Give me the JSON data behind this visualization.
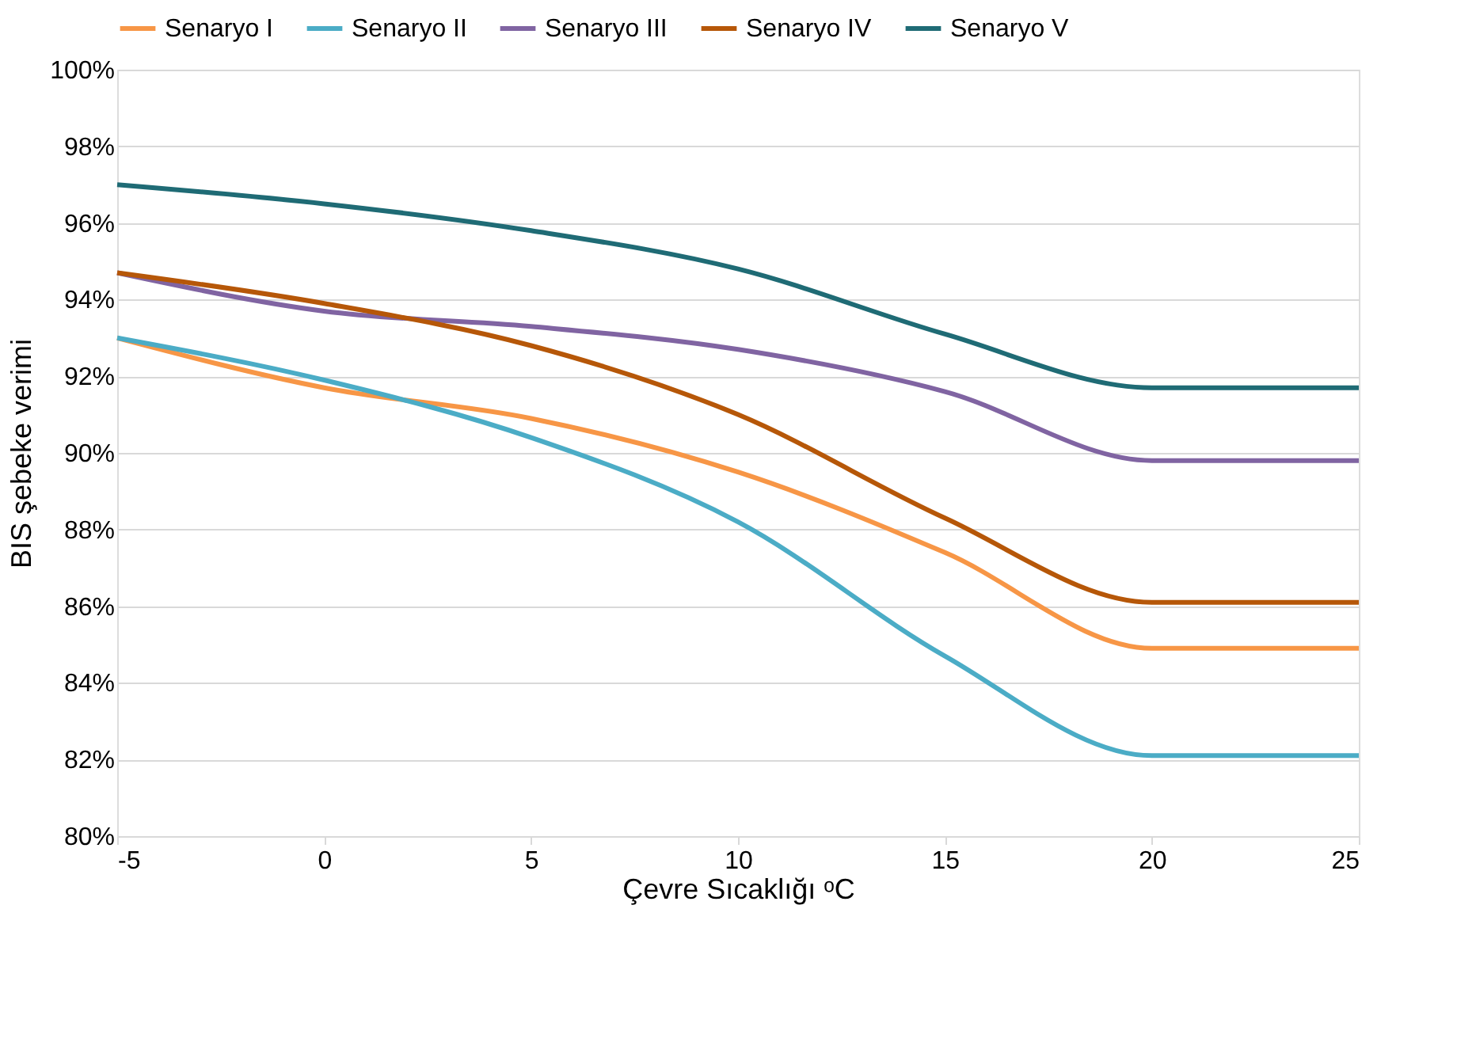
{
  "chart_data": {
    "type": "line",
    "xlabel": "Çevre Sıcaklığı ᵒC",
    "ylabel": "BIS şebeke verimi",
    "x": [
      -5,
      0,
      5,
      10,
      15,
      20,
      25
    ],
    "series": [
      {
        "name": "Senaryo I",
        "color": "#f79646",
        "values": [
          93.0,
          91.7,
          90.9,
          89.5,
          87.4,
          84.9,
          84.9
        ]
      },
      {
        "name": "Senaryo II",
        "color": "#4bacc6",
        "values": [
          93.0,
          91.9,
          90.4,
          88.2,
          84.7,
          82.1,
          82.1
        ]
      },
      {
        "name": "Senaryo III",
        "color": "#8064a2",
        "values": [
          94.7,
          93.7,
          93.3,
          92.7,
          91.6,
          89.8,
          89.8
        ]
      },
      {
        "name": "Senaryo IV",
        "color": "#b65708",
        "values": [
          94.7,
          93.9,
          92.8,
          91.0,
          88.3,
          86.1,
          86.1
        ]
      },
      {
        "name": "Senaryo V",
        "color": "#1f6b75",
        "values": [
          97.0,
          96.5,
          95.8,
          94.8,
          93.1,
          91.7,
          91.7
        ]
      }
    ],
    "xlim": [
      -5,
      25
    ],
    "xticks": [
      -5,
      0,
      5,
      10,
      15,
      20,
      25
    ],
    "ylim": [
      80,
      100
    ],
    "yticks": [
      {
        "value": 80,
        "label": "80%"
      },
      {
        "value": 82,
        "label": "82%"
      },
      {
        "value": 84,
        "label": "84%"
      },
      {
        "value": 86,
        "label": "86%"
      },
      {
        "value": 88,
        "label": "88%"
      },
      {
        "value": 90,
        "label": "90%"
      },
      {
        "value": 92,
        "label": "92%"
      },
      {
        "value": 94,
        "label": "94%"
      },
      {
        "value": 96,
        "label": "96%"
      },
      {
        "value": 98,
        "label": "98%"
      },
      {
        "value": 100,
        "label": "100%"
      }
    ],
    "grid": "y",
    "legend": "top",
    "marker": "none",
    "line_style": "solid"
  }
}
